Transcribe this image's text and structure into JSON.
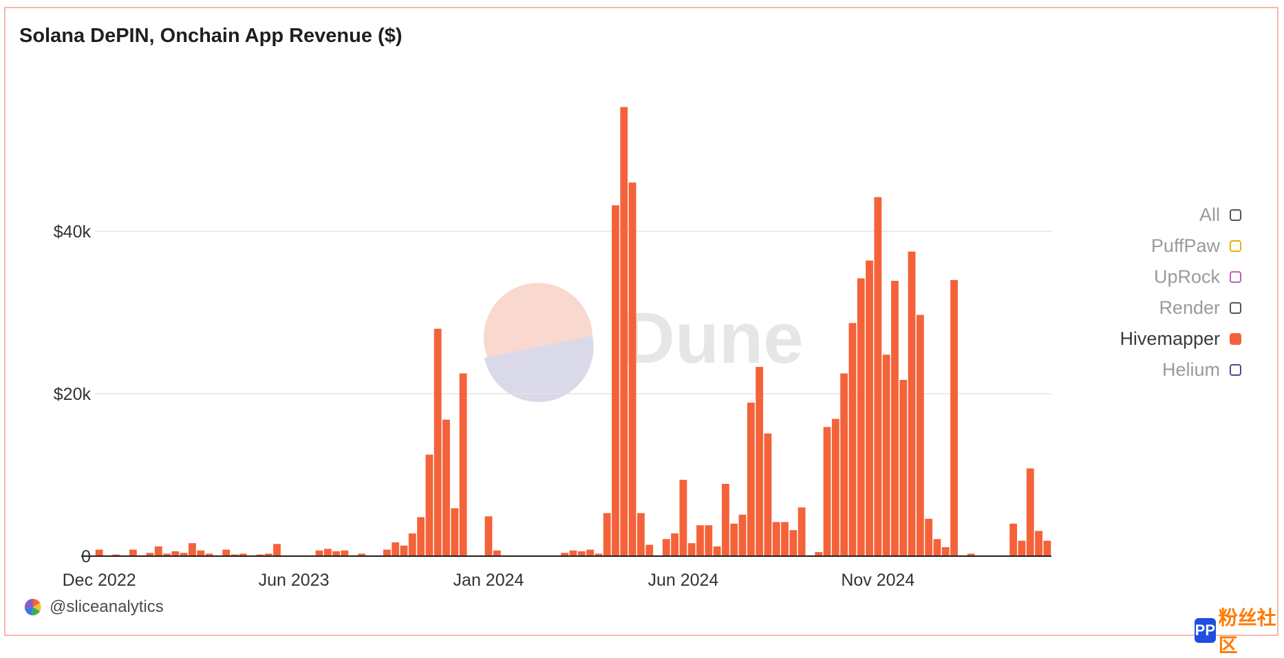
{
  "title": "Solana DePIN, Onchain App Revenue ($)",
  "credit": "@sliceanalytics",
  "watermark": "Dune",
  "corner_badge": {
    "icon": "pp-logo-icon",
    "text": "粉丝社区"
  },
  "colors": {
    "hivemapper": "#f4623a",
    "grid": "#e4e4e4",
    "axis": "#222222"
  },
  "legend": [
    {
      "label": "All",
      "color": "#555555",
      "active": false,
      "filled": false
    },
    {
      "label": "PuffPaw",
      "color": "#e0b400",
      "active": false,
      "filled": false
    },
    {
      "label": "UpRock",
      "color": "#c060b8",
      "active": false,
      "filled": false
    },
    {
      "label": "Render",
      "color": "#555555",
      "active": false,
      "filled": false
    },
    {
      "label": "Hivemapper",
      "color": "#f4623a",
      "active": true,
      "filled": true
    },
    {
      "label": "Helium",
      "color": "#4a4a8a",
      "active": false,
      "filled": false
    }
  ],
  "chart_data": {
    "type": "bar",
    "title": "Solana DePIN, Onchain App Revenue ($)",
    "xlabel": "",
    "ylabel": "",
    "ylim": [
      0,
      60000
    ],
    "yticks": [
      0,
      20000,
      40000
    ],
    "ytick_labels": [
      "0",
      "$20k",
      "$40k"
    ],
    "grid": true,
    "legend_position": "right",
    "x_tick_labels": [
      "Dec 2022",
      "Jun 2023",
      "Jan 2024",
      "Jun 2024",
      "Nov 2024"
    ],
    "x_tick_indices": [
      0,
      23,
      46,
      69,
      92
    ],
    "series": [
      {
        "name": "Hivemapper",
        "color": "#f4623a",
        "values": [
          800,
          100,
          200,
          100,
          800,
          100,
          400,
          1200,
          300,
          600,
          400,
          1600,
          700,
          300,
          100,
          800,
          200,
          300,
          100,
          200,
          300,
          1500,
          100,
          100,
          100,
          100,
          700,
          900,
          600,
          700,
          100,
          300,
          100,
          100,
          800,
          1700,
          1300,
          2800,
          4800,
          12500,
          28000,
          16800,
          5900,
          22500,
          100,
          100,
          4900,
          700,
          100,
          100,
          100,
          100,
          100,
          100,
          100,
          400,
          700,
          600,
          800,
          300,
          5300,
          43200,
          55300,
          46000,
          5300,
          1400,
          100,
          2100,
          2800,
          9400,
          1600,
          3800,
          3800,
          1200,
          8900,
          4000,
          5100,
          18900,
          23300,
          15100,
          4200,
          4200,
          3200,
          6000,
          100,
          500,
          15900,
          16900,
          22500,
          28700,
          34200,
          36400,
          44200,
          24800,
          33900,
          21700,
          37500,
          29700,
          4600,
          2100,
          1100,
          34000,
          100,
          300,
          100,
          100,
          100,
          100,
          4000,
          1900,
          10800,
          3100,
          1900
        ]
      }
    ]
  }
}
